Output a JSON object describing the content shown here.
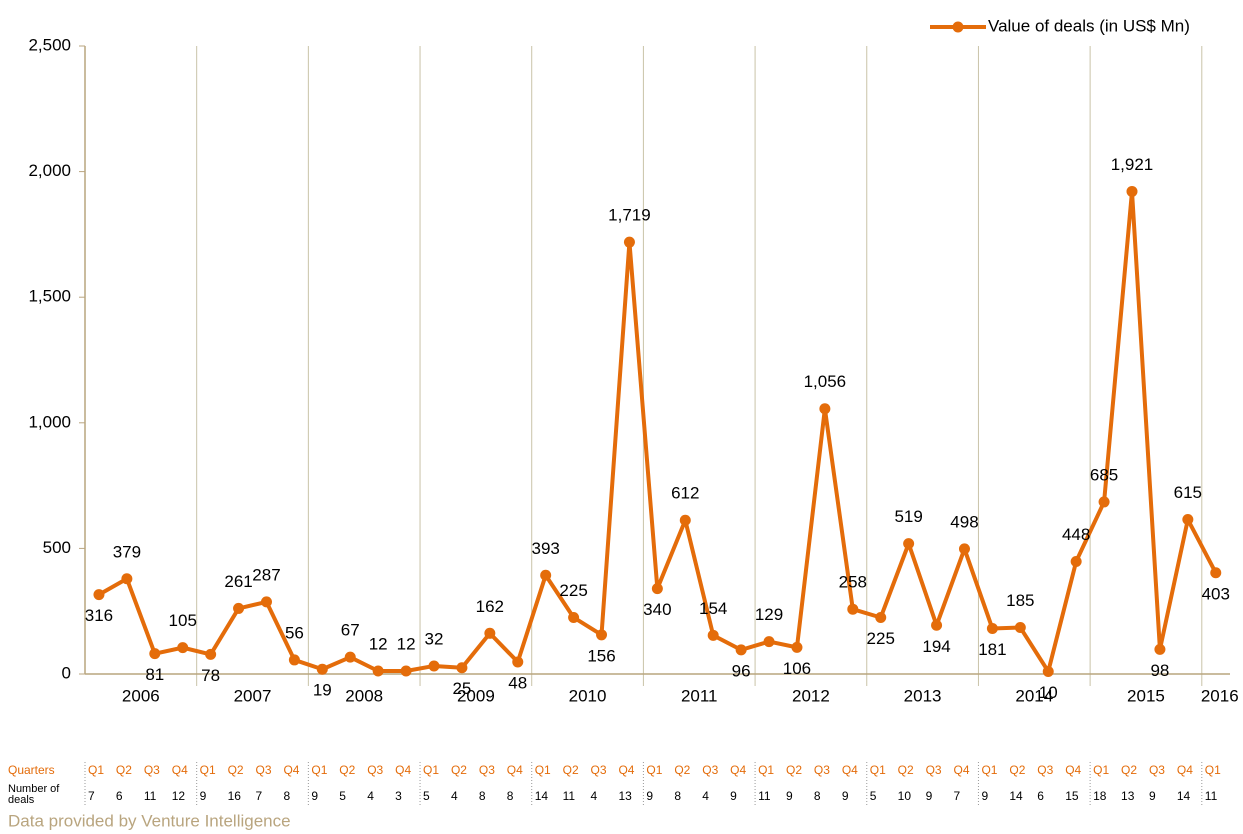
{
  "chart_data": {
    "type": "line",
    "categories": [
      "Q1",
      "Q2",
      "Q3",
      "Q4",
      "Q1",
      "Q2",
      "Q3",
      "Q4",
      "Q1",
      "Q2",
      "Q3",
      "Q4",
      "Q1",
      "Q2",
      "Q3",
      "Q4",
      "Q1",
      "Q2",
      "Q3",
      "Q4",
      "Q1",
      "Q2",
      "Q3",
      "Q4",
      "Q1",
      "Q2",
      "Q3",
      "Q4",
      "Q1",
      "Q2",
      "Q3",
      "Q4",
      "Q1",
      "Q2",
      "Q3",
      "Q4",
      "Q1",
      "Q2",
      "Q3",
      "Q4",
      "Q1"
    ],
    "years": [
      "2006",
      "2007",
      "2008",
      "2009",
      "2010",
      "2011",
      "2012",
      "2013",
      "2014",
      "2015",
      "2016"
    ],
    "series": [
      {
        "name": "Value of deals (in US$ Mn)",
        "color": "#e46c0a",
        "values": [
          316,
          379,
          81,
          105,
          78,
          261,
          287,
          56,
          19,
          67,
          12,
          12,
          32,
          25,
          162,
          48,
          393,
          225,
          156,
          1719,
          340,
          612,
          154,
          96,
          129,
          106,
          1056,
          258,
          225,
          519,
          194,
          498,
          181,
          185,
          10,
          448,
          685,
          1921,
          98,
          615,
          403
        ],
        "value_labels": [
          "316",
          "379",
          "81",
          "105",
          "78",
          "261",
          "287",
          "56",
          "19",
          "67",
          "12",
          "12",
          "32",
          "25",
          "162",
          "48",
          "393",
          "225",
          "156",
          "1,719",
          "340",
          "612",
          "154",
          "96",
          "129",
          "106",
          "1,056",
          "258",
          "225",
          "519",
          "194",
          "498",
          "181",
          "185",
          "10",
          "448",
          "685",
          "1,921",
          "98",
          "615",
          "403"
        ]
      }
    ],
    "ylim": [
      0,
      2500
    ],
    "yticks": [
      0,
      500,
      {
        "value": 1000,
        "label": "1,000"
      },
      {
        "value": 1500,
        "label": "1,500"
      },
      {
        "value": 2000,
        "label": "2,000"
      },
      {
        "value": 2500,
        "label": "2,500"
      }
    ],
    "legend": "top-right",
    "table": {
      "quarters_label": "Quarters",
      "deals_label": [
        "Number of",
        "deals"
      ],
      "deals": [
        7,
        6,
        11,
        12,
        9,
        16,
        7,
        8,
        9,
        5,
        4,
        3,
        5,
        4,
        8,
        8,
        14,
        11,
        4,
        13,
        9,
        8,
        4,
        9,
        11,
        9,
        8,
        9,
        5,
        10,
        9,
        7,
        9,
        14,
        6,
        15,
        18,
        13,
        9,
        14,
        11
      ]
    },
    "source": "Data provided by Venture Intelligence"
  }
}
